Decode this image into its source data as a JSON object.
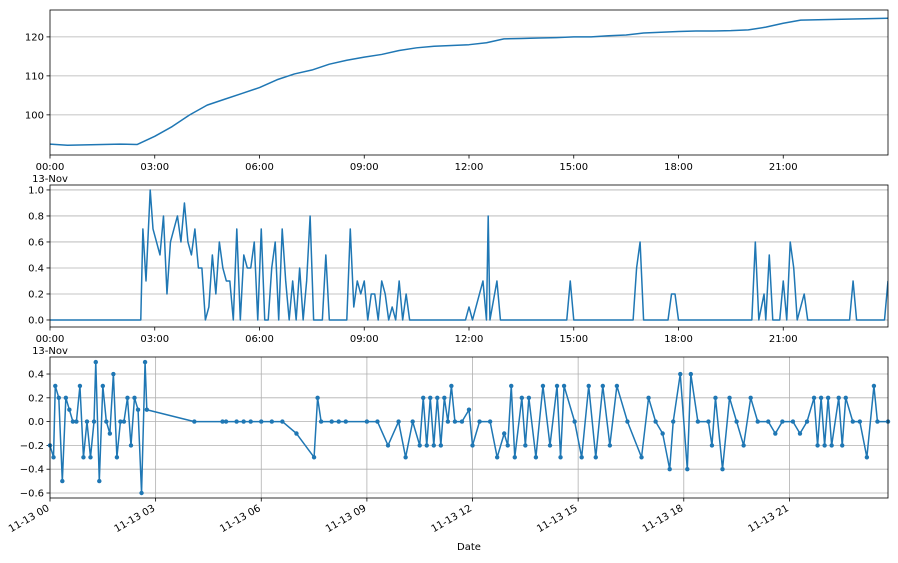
{
  "chart_data": [
    {
      "type": "line",
      "color": "#1f77b4",
      "grid": "y",
      "x_offset_label": "13-Nov",
      "xlim": [
        0,
        24
      ],
      "ylim": [
        89.7,
        126.9
      ],
      "xticks": [
        {
          "value": 0,
          "label": "00:00"
        },
        {
          "value": 3,
          "label": "03:00"
        },
        {
          "value": 6,
          "label": "06:00"
        },
        {
          "value": 9,
          "label": "09:00"
        },
        {
          "value": 12,
          "label": "12:00"
        },
        {
          "value": 15,
          "label": "15:00"
        },
        {
          "value": 18,
          "label": "18:00"
        },
        {
          "value": 21,
          "label": "21:00"
        }
      ],
      "yticks": [
        100,
        110,
        120
      ],
      "x": [
        0,
        0.5,
        1,
        1.5,
        2,
        2.5,
        3,
        3.5,
        4,
        4.5,
        5,
        5.5,
        6,
        6.5,
        7,
        7.5,
        8,
        8.5,
        9,
        9.5,
        10,
        10.5,
        11,
        11.5,
        12,
        12.5,
        13,
        13.5,
        14,
        14.5,
        15,
        15.5,
        16,
        16.5,
        17,
        17.5,
        18,
        18.5,
        19,
        19.5,
        20,
        20.5,
        21,
        21.5,
        22,
        22.5,
        23,
        23.5,
        24
      ],
      "series": [
        {
          "color": "#1f77b4",
          "values": [
            92.5,
            92.2,
            92.3,
            92.4,
            92.5,
            92.4,
            94.5,
            97,
            100,
            102.5,
            104,
            105.5,
            107,
            109,
            110.5,
            111.5,
            113,
            114,
            114.8,
            115.5,
            116.5,
            117.2,
            117.6,
            117.8,
            118,
            118.5,
            119.5,
            119.6,
            119.7,
            119.8,
            120,
            120,
            120.3,
            120.5,
            121,
            121.2,
            121.4,
            121.5,
            121.5,
            121.6,
            121.8,
            122.5,
            123.5,
            124.3,
            124.4,
            124.5,
            124.6,
            124.7,
            124.8
          ]
        }
      ]
    },
    {
      "type": "line",
      "color": "#1f77b4",
      "grid": "y",
      "x_offset_label": "13-Nov",
      "xlim": [
        0,
        24
      ],
      "ylim": [
        -0.054,
        1.038
      ],
      "xticks": [
        {
          "value": 0,
          "label": "00:00"
        },
        {
          "value": 3,
          "label": "03:00"
        },
        {
          "value": 6,
          "label": "06:00"
        },
        {
          "value": 9,
          "label": "09:00"
        },
        {
          "value": 12,
          "label": "12:00"
        },
        {
          "value": 15,
          "label": "15:00"
        },
        {
          "value": 18,
          "label": "18:00"
        },
        {
          "value": 21,
          "label": "21:00"
        }
      ],
      "yticks": [
        {
          "value": 0,
          "label": "0.0"
        },
        0.2,
        0.4,
        0.6,
        0.8,
        {
          "value": 1,
          "label": "1.0"
        }
      ],
      "x": [
        0,
        2.6,
        2.66,
        2.75,
        2.87,
        2.95,
        3.05,
        3.15,
        3.25,
        3.35,
        3.45,
        3.55,
        3.65,
        3.75,
        3.85,
        3.95,
        4.05,
        4.15,
        4.25,
        4.35,
        4.45,
        4.55,
        4.65,
        4.75,
        4.85,
        4.95,
        5.05,
        5.15,
        5.25,
        5.35,
        5.45,
        5.55,
        5.65,
        5.75,
        5.85,
        5.95,
        6.05,
        6.15,
        6.25,
        6.35,
        6.45,
        6.55,
        6.65,
        6.75,
        6.85,
        6.95,
        7.05,
        7.15,
        7.25,
        7.35,
        7.45,
        7.55,
        7.8,
        7.9,
        8.0,
        8.5,
        8.6,
        8.7,
        8.8,
        8.9,
        9.0,
        9.1,
        9.2,
        9.3,
        9.4,
        9.5,
        9.6,
        9.7,
        9.8,
        9.9,
        10.0,
        10.1,
        10.2,
        10.3,
        11.9,
        12.0,
        12.1,
        12.3,
        12.4,
        12.5,
        12.55,
        12.6,
        12.8,
        12.9,
        14.8,
        14.9,
        15.0,
        16.7,
        16.8,
        16.9,
        17.0,
        17.7,
        17.8,
        17.9,
        18.0,
        20.1,
        20.2,
        20.3,
        20.45,
        20.5,
        20.6,
        20.7,
        20.9,
        21.0,
        21.1,
        21.2,
        21.3,
        21.4,
        21.5,
        21.6,
        21.7,
        22.9,
        23.0,
        23.1,
        23.9,
        24.0
      ],
      "series": [
        {
          "color": "#1f77b4",
          "values": [
            0,
            0,
            0.7,
            0.3,
            1.0,
            0.7,
            0.6,
            0.5,
            0.8,
            0.2,
            0.6,
            0.7,
            0.8,
            0.6,
            0.9,
            0.6,
            0.5,
            0.7,
            0.4,
            0.4,
            0,
            0.1,
            0.5,
            0.2,
            0.6,
            0.4,
            0.3,
            0.3,
            0,
            0.7,
            0,
            0.5,
            0.4,
            0.4,
            0.6,
            0,
            0.7,
            0,
            0,
            0.4,
            0.6,
            0,
            0.7,
            0.3,
            0,
            0.3,
            0,
            0.4,
            0,
            0.3,
            0.8,
            0,
            0,
            0.5,
            0,
            0,
            0.7,
            0.1,
            0.3,
            0.2,
            0.3,
            0,
            0.2,
            0.2,
            0,
            0.3,
            0.2,
            0,
            0.1,
            0,
            0.3,
            0,
            0.2,
            0,
            0,
            0.1,
            0,
            0.2,
            0.3,
            0,
            0.8,
            0,
            0.3,
            0,
            0,
            0.3,
            0,
            0,
            0.4,
            0.6,
            0,
            0,
            0.2,
            0.2,
            0,
            0,
            0.6,
            0,
            0.2,
            0,
            0.5,
            0,
            0,
            0.3,
            0,
            0.6,
            0.4,
            0,
            0.1,
            0.2,
            0,
            0,
            0.3,
            0,
            0,
            0.3
          ]
        }
      ]
    },
    {
      "type": "line",
      "color": "#1f77b4",
      "grid": "both",
      "marker": true,
      "xlabel": "Date",
      "xlim": [
        0,
        23.8
      ],
      "ylim": [
        -0.642,
        0.543
      ],
      "xticks": [
        {
          "value": 0,
          "label": "11-13 00"
        },
        {
          "value": 3,
          "label": "11-13 03"
        },
        {
          "value": 6,
          "label": "11-13 06"
        },
        {
          "value": 9,
          "label": "11-13 09"
        },
        {
          "value": 12,
          "label": "11-13 12"
        },
        {
          "value": 15,
          "label": "11-13 15"
        },
        {
          "value": 18,
          "label": "11-13 18"
        },
        {
          "value": 21,
          "label": "11-13 21"
        }
      ],
      "yticks": [
        0.4,
        0.2,
        {
          "value": 0,
          "label": "0.0"
        },
        {
          "value": -0.2,
          "label": "−0.2"
        },
        {
          "value": -0.4,
          "label": "−0.4"
        },
        {
          "value": -0.6,
          "label": "−0.6"
        }
      ],
      "x": [
        0,
        0.1,
        0.15,
        0.25,
        0.35,
        0.45,
        0.55,
        0.65,
        0.75,
        0.85,
        0.95,
        1.05,
        1.15,
        1.25,
        1.3,
        1.4,
        1.5,
        1.6,
        1.7,
        1.8,
        1.9,
        2.0,
        2.1,
        2.2,
        2.3,
        2.4,
        2.5,
        2.6,
        2.7,
        2.75,
        4.1,
        4.9,
        5.0,
        5.3,
        5.5,
        5.7,
        6.0,
        6.3,
        6.6,
        7.0,
        7.5,
        7.6,
        7.7,
        8.0,
        8.2,
        8.4,
        9.0,
        9.3,
        9.6,
        9.9,
        10.1,
        10.3,
        10.5,
        10.6,
        10.7,
        10.8,
        10.9,
        11.0,
        11.1,
        11.2,
        11.3,
        11.4,
        11.5,
        11.7,
        11.9,
        12.0,
        12.2,
        12.5,
        12.7,
        12.9,
        13.0,
        13.1,
        13.2,
        13.4,
        13.5,
        13.6,
        13.8,
        14.0,
        14.2,
        14.4,
        14.5,
        14.6,
        14.9,
        15.1,
        15.3,
        15.5,
        15.7,
        15.9,
        16.1,
        16.4,
        16.8,
        17.0,
        17.2,
        17.4,
        17.6,
        17.7,
        17.9,
        18.1,
        18.2,
        18.4,
        18.7,
        18.8,
        18.9,
        19.1,
        19.3,
        19.5,
        19.7,
        19.9,
        20.1,
        20.4,
        20.6,
        20.8,
        21.1,
        21.3,
        21.5,
        21.7,
        21.8,
        21.9,
        22.0,
        22.1,
        22.2,
        22.4,
        22.5,
        22.6,
        22.8,
        23.0,
        23.2,
        23.4,
        23.5,
        23.8
      ],
      "series": [
        {
          "color": "#1f77b4",
          "values": [
            -0.2,
            -0.3,
            0.3,
            0.2,
            -0.5,
            0.2,
            0.1,
            0,
            0,
            0.3,
            -0.3,
            0,
            -0.3,
            0,
            0.5,
            -0.5,
            0.3,
            0,
            -0.1,
            0.4,
            -0.3,
            0,
            0,
            0.2,
            -0.2,
            0.2,
            0.1,
            -0.6,
            0.5,
            0.1,
            0,
            0,
            0,
            0,
            0,
            0,
            0,
            0,
            0,
            -0.1,
            -0.3,
            0.2,
            0,
            0,
            0,
            0,
            0,
            0,
            -0.2,
            0,
            -0.3,
            0,
            -0.2,
            0.2,
            -0.2,
            0.2,
            -0.2,
            0.2,
            -0.2,
            0.2,
            0,
            0.3,
            0,
            0,
            0.1,
            -0.2,
            0,
            0,
            -0.3,
            -0.1,
            -0.2,
            0.3,
            -0.3,
            0.2,
            -0.2,
            0.2,
            -0.3,
            0.3,
            -0.2,
            0.3,
            -0.3,
            0.3,
            0,
            -0.3,
            0.3,
            -0.3,
            0.3,
            -0.2,
            0.3,
            0,
            -0.3,
            0.2,
            0,
            -0.1,
            -0.4,
            0,
            0.4,
            -0.4,
            0.4,
            0,
            0,
            -0.2,
            0.2,
            -0.4,
            0.2,
            0,
            -0.2,
            0.2,
            0,
            0,
            -0.1,
            0,
            0,
            -0.1,
            0,
            0.2,
            -0.2,
            0.2,
            -0.2,
            0.2,
            -0.2,
            0.2,
            -0.2,
            0.2,
            0,
            0,
            -0.3,
            0.3,
            0,
            0
          ]
        }
      ]
    }
  ]
}
